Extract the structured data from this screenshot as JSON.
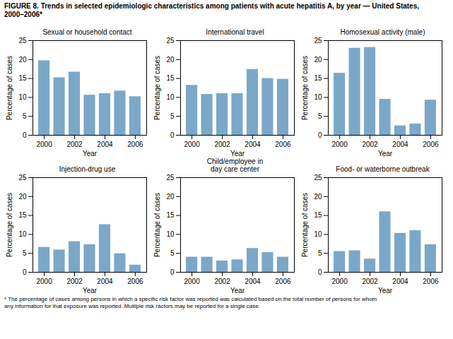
{
  "title": "FIGURE 8. Trends in selected epidemiologic characteristics among patients with acute hepatitis A, by year — United States,\n2000–2006*",
  "footnote": "* The percentage of cases among persons in which a specific risk factor was reported was calculated based on the total number of persons for whom\nany information for that exposure was reported. Multiple risk ractors may be reported for a single case.",
  "chart_data": [
    {
      "type": "bar",
      "title": "Sexual or household contact",
      "x": [
        2000,
        2001,
        2002,
        2003,
        2004,
        2005,
        2006
      ],
      "values": [
        19.7,
        15.2,
        16.7,
        10.6,
        11.0,
        11.7,
        10.2
      ],
      "color": "#7ba7c9",
      "xlabel": "Year",
      "ylabel": "Percentage of cases",
      "xlim": [
        1999.25,
        2006.75
      ],
      "xticks": [
        2000,
        2002,
        2004,
        2006
      ],
      "ylim": [
        0,
        25
      ],
      "yticks": [
        0,
        5,
        10,
        15,
        20,
        25
      ],
      "grid": false
    },
    {
      "type": "bar",
      "title": "International travel",
      "x": [
        2000,
        2001,
        2002,
        2003,
        2004,
        2005,
        2006
      ],
      "values": [
        13.2,
        10.8,
        11.0,
        11.0,
        17.4,
        15.0,
        14.8
      ],
      "color": "#7ba7c9",
      "xlabel": "Year",
      "ylabel": "Percentage of cases",
      "xlim": [
        1999.25,
        2006.75
      ],
      "xticks": [
        2000,
        2002,
        2004,
        2006
      ],
      "ylim": [
        0,
        25
      ],
      "yticks": [
        0,
        5,
        10,
        15,
        20,
        25
      ],
      "grid": false
    },
    {
      "type": "bar",
      "title": "Homosexual activity (male)",
      "x": [
        2000,
        2001,
        2002,
        2003,
        2004,
        2005,
        2006
      ],
      "values": [
        16.4,
        23.0,
        23.2,
        9.5,
        2.5,
        3.0,
        9.3
      ],
      "color": "#7ba7c9",
      "xlabel": "Year",
      "ylabel": "Percentage of cases",
      "xlim": [
        1999.25,
        2006.75
      ],
      "xticks": [
        2000,
        2002,
        2004,
        2006
      ],
      "ylim": [
        0,
        25
      ],
      "yticks": [
        0,
        5,
        10,
        15,
        20,
        25
      ],
      "grid": false
    },
    {
      "type": "bar",
      "title": "Injection-drug use",
      "x": [
        2000,
        2001,
        2002,
        2003,
        2004,
        2005,
        2006
      ],
      "values": [
        6.6,
        5.9,
        8.1,
        7.3,
        12.6,
        4.9,
        1.9
      ],
      "color": "#7ba7c9",
      "xlabel": "Year",
      "ylabel": "Percentage of cases",
      "xlim": [
        1999.25,
        2006.75
      ],
      "xticks": [
        2000,
        2002,
        2004,
        2006
      ],
      "ylim": [
        0,
        25
      ],
      "yticks": [
        0,
        5,
        10,
        15,
        20,
        25
      ],
      "grid": false
    },
    {
      "type": "bar",
      "title": "Child/employee in\nday care center",
      "x": [
        2000,
        2001,
        2002,
        2003,
        2004,
        2005,
        2006
      ],
      "values": [
        4.0,
        4.0,
        3.0,
        3.3,
        6.3,
        5.2,
        4.0
      ],
      "color": "#7ba7c9",
      "xlabel": "Year",
      "ylabel": "Percentage of cases",
      "xlim": [
        1999.25,
        2006.75
      ],
      "xticks": [
        2000,
        2002,
        2004,
        2006
      ],
      "ylim": [
        0,
        25
      ],
      "yticks": [
        0,
        5,
        10,
        15,
        20,
        25
      ],
      "grid": false
    },
    {
      "type": "bar",
      "title": "Food- or waterborne outbreak",
      "x": [
        2000,
        2001,
        2002,
        2003,
        2004,
        2005,
        2006
      ],
      "values": [
        5.5,
        5.7,
        3.5,
        16.0,
        10.3,
        11.0,
        7.3
      ],
      "color": "#7ba7c9",
      "xlabel": "Year",
      "ylabel": "Percentage of cases",
      "xlim": [
        1999.25,
        2006.75
      ],
      "xticks": [
        2000,
        2002,
        2004,
        2006
      ],
      "ylim": [
        0,
        25
      ],
      "yticks": [
        0,
        5,
        10,
        15,
        20,
        25
      ],
      "grid": false
    }
  ]
}
